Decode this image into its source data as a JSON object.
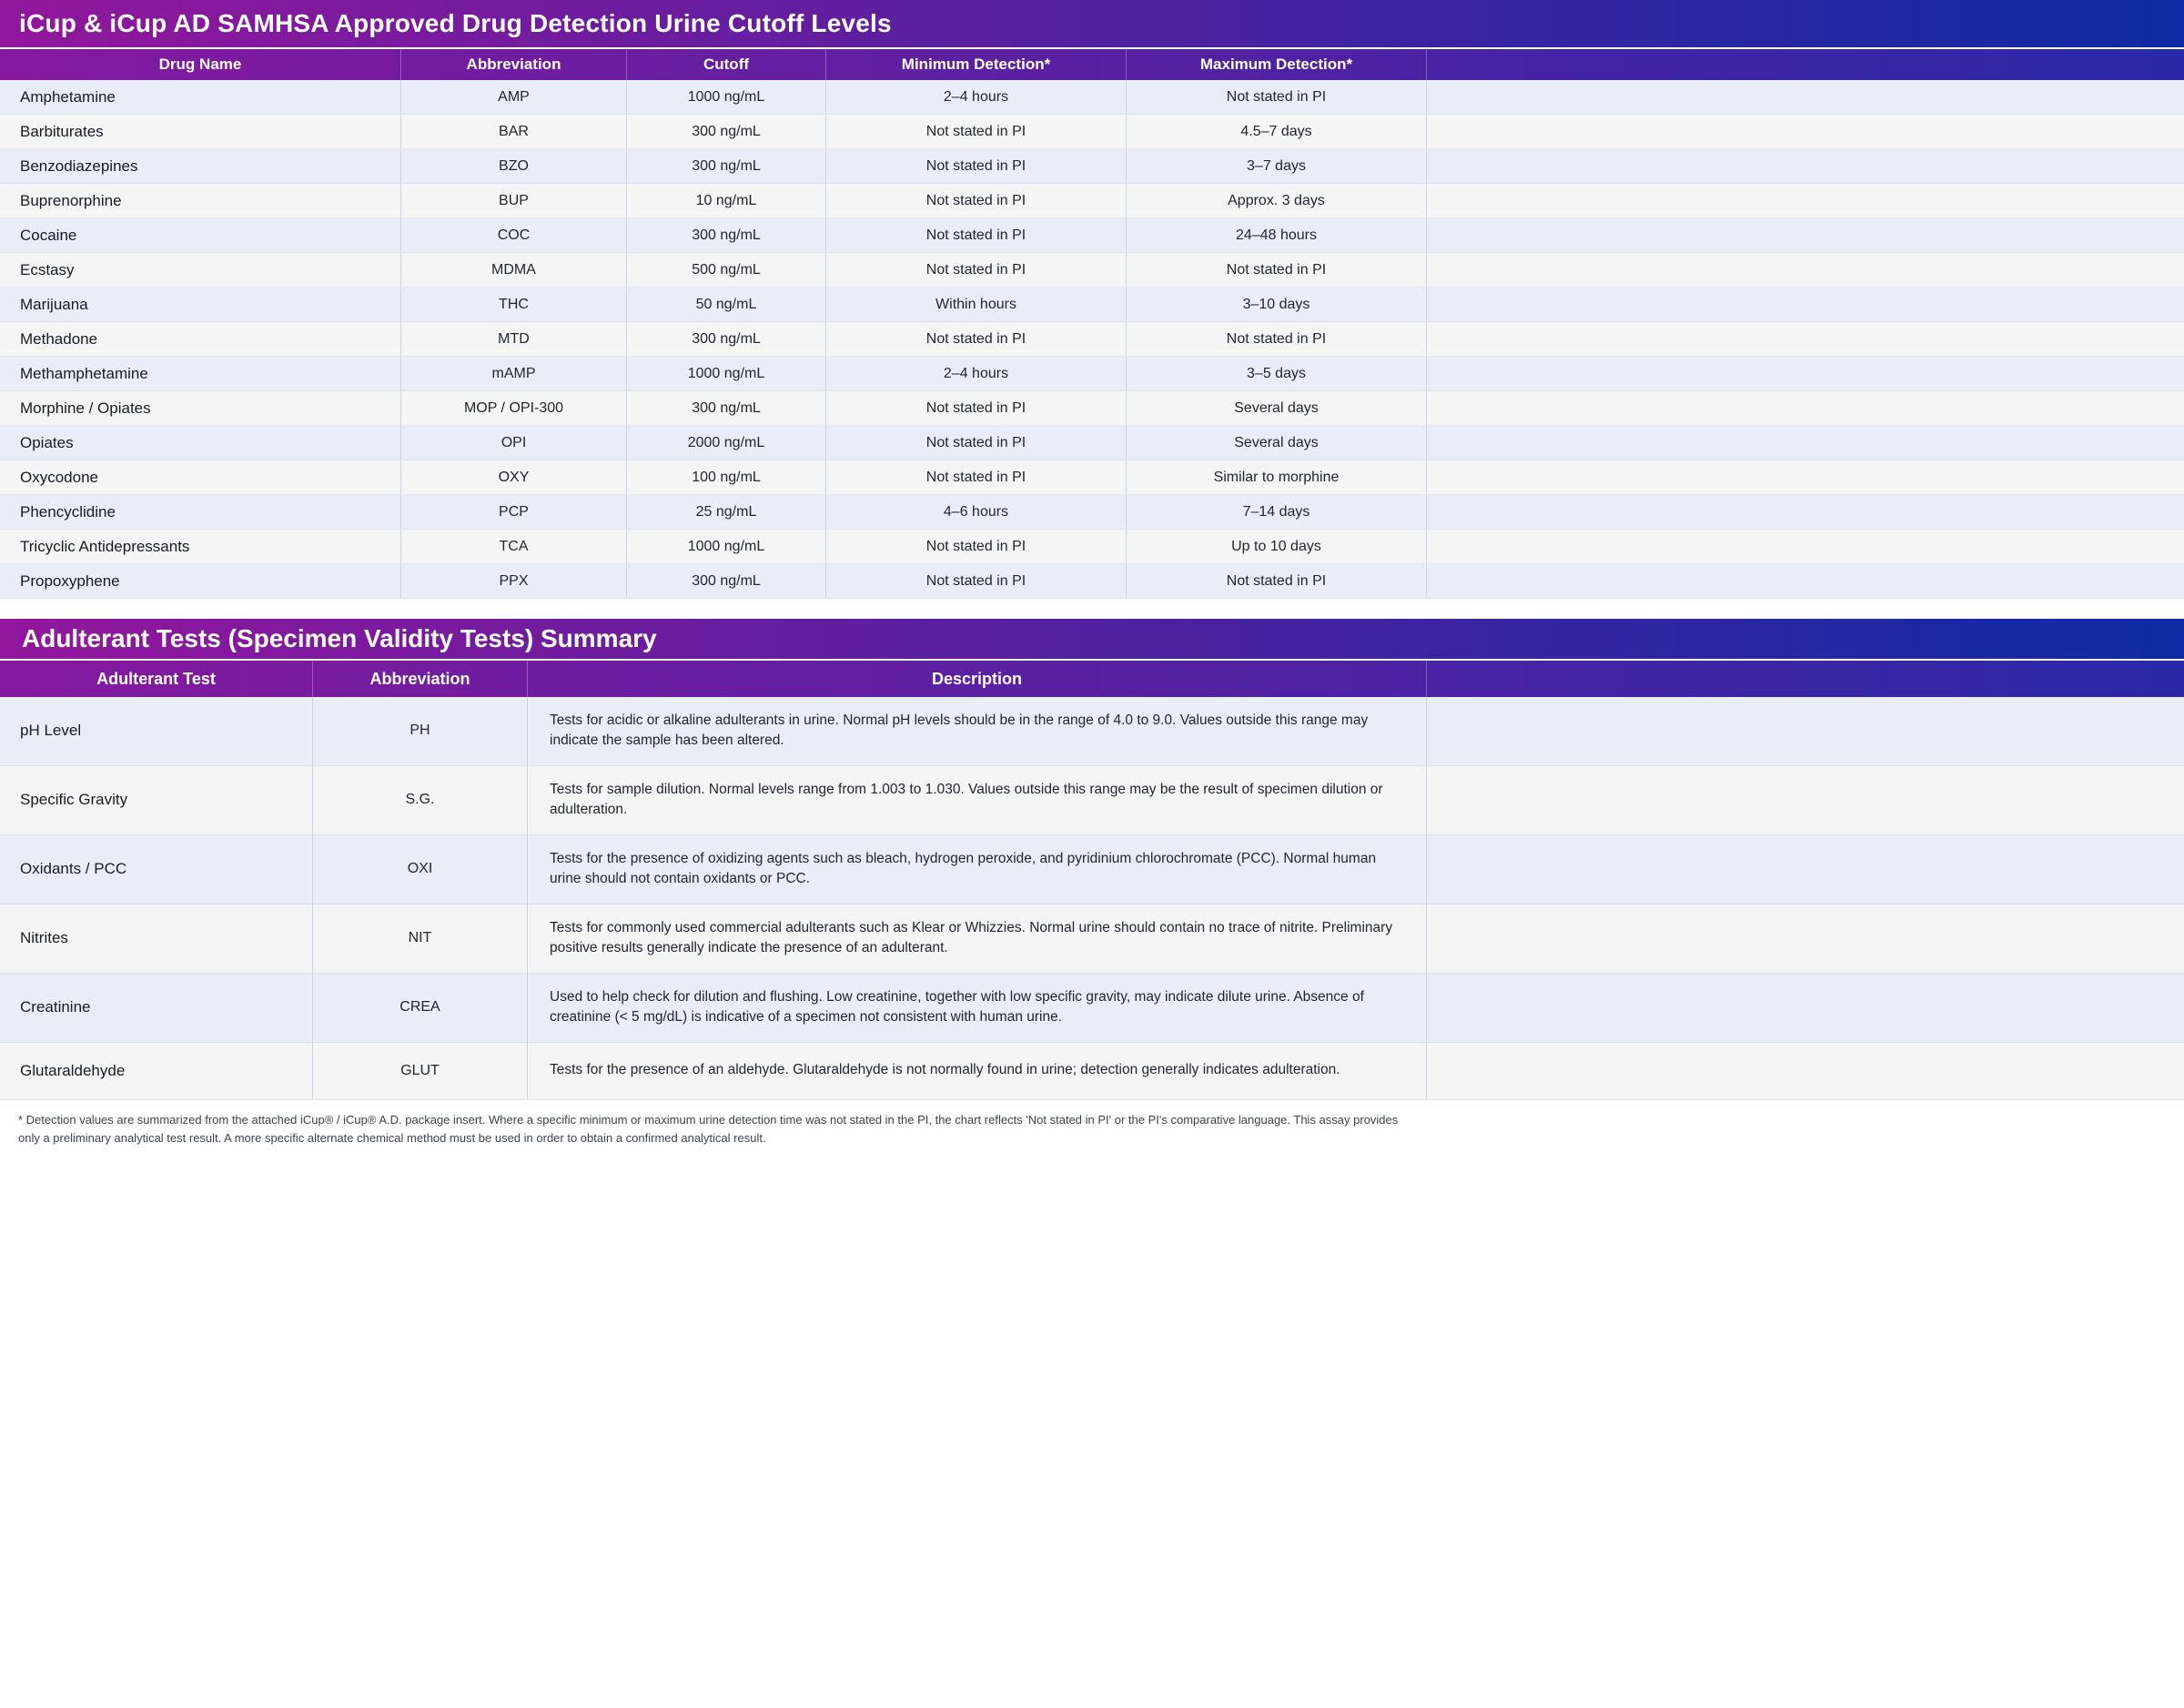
{
  "page": {
    "title": "iCup & iCup AD SAMHSA Approved Drug Detection Urine Cutoff Levels",
    "section2_title": "Adulterant Tests (Specimen Validity Tests) Summary",
    "footnote": "* Detection values are summarized from the attached iCup® / iCup® A.D. package insert. Where a specific minimum or maximum urine detection time was not stated in the PI, the chart reflects 'Not stated in PI' or the PI's comparative language. This assay provides only a preliminary analytical test result. A more specific alternate chemical method must be used in order to obtain a confirmed analytical result."
  },
  "colors": {
    "header_gradient_left": "#92179c",
    "header_gradient_right": "#0f2aa4",
    "table_header_gradient_left": "#85199e",
    "table_header_gradient_right": "#2a28a6",
    "stripe_blue": "#e8edf8",
    "stripe_gray": "#f5f5f6"
  },
  "drug_table": {
    "headers": [
      "Drug Name",
      "Abbreviation",
      "Cutoff",
      "Minimum Detection*",
      "Maximum Detection*"
    ],
    "rows": [
      {
        "drug": "Amphetamine",
        "abbr": "AMP",
        "cutoff": "1000 ng/mL",
        "min": "2–4 hours",
        "max": "Not stated in PI"
      },
      {
        "drug": "Barbiturates",
        "abbr": "BAR",
        "cutoff": "300 ng/mL",
        "min": "Not stated in PI",
        "max": "4.5–7 days"
      },
      {
        "drug": "Benzodiazepines",
        "abbr": "BZO",
        "cutoff": "300 ng/mL",
        "min": "Not stated in PI",
        "max": "3–7 days"
      },
      {
        "drug": "Buprenorphine",
        "abbr": "BUP",
        "cutoff": "10 ng/mL",
        "min": "Not stated in PI",
        "max": "Approx. 3 days"
      },
      {
        "drug": "Cocaine",
        "abbr": "COC",
        "cutoff": "300 ng/mL",
        "min": "Not stated in PI",
        "max": "24–48 hours"
      },
      {
        "drug": "Ecstasy",
        "abbr": "MDMA",
        "cutoff": "500 ng/mL",
        "min": "Not stated in PI",
        "max": "Not stated in PI"
      },
      {
        "drug": "Marijuana",
        "abbr": "THC",
        "cutoff": "50 ng/mL",
        "min": "Within hours",
        "max": "3–10 days"
      },
      {
        "drug": "Methadone",
        "abbr": "MTD",
        "cutoff": "300 ng/mL",
        "min": "Not stated in PI",
        "max": "Not stated in PI"
      },
      {
        "drug": "Methamphetamine",
        "abbr": "mAMP",
        "cutoff": "1000 ng/mL",
        "min": "2–4 hours",
        "max": "3–5 days"
      },
      {
        "drug": "Morphine / Opiates",
        "abbr": "MOP / OPI-300",
        "cutoff": "300 ng/mL",
        "min": "Not stated in PI",
        "max": "Several days"
      },
      {
        "drug": "Opiates",
        "abbr": "OPI",
        "cutoff": "2000 ng/mL",
        "min": "Not stated in PI",
        "max": "Several days"
      },
      {
        "drug": "Oxycodone",
        "abbr": "OXY",
        "cutoff": "100 ng/mL",
        "min": "Not stated in PI",
        "max": "Similar to morphine"
      },
      {
        "drug": "Phencyclidine",
        "abbr": "PCP",
        "cutoff": "25 ng/mL",
        "min": "4–6 hours",
        "max": "7–14 days"
      },
      {
        "drug": "Tricyclic Antidepressants",
        "abbr": "TCA",
        "cutoff": "1000 ng/mL",
        "min": "Not stated in PI",
        "max": "Up to 10 days"
      },
      {
        "drug": "Propoxyphene",
        "abbr": "PPX",
        "cutoff": "300 ng/mL",
        "min": "Not stated in PI",
        "max": "Not stated in PI"
      }
    ]
  },
  "adulterant_table": {
    "headers": [
      "Adulterant Test",
      "Abbreviation",
      "Description"
    ],
    "rows": [
      {
        "test": "pH Level",
        "abbr": "PH",
        "desc": "Tests for acidic or alkaline adulterants in urine. Normal pH levels should be in the range of 4.0 to 9.0. Values outside this range may indicate the sample has been altered."
      },
      {
        "test": "Specific Gravity",
        "abbr": "S.G.",
        "desc": "Tests for sample dilution. Normal levels range from 1.003 to 1.030. Values outside this range may be the result of specimen dilution or adulteration."
      },
      {
        "test": "Oxidants / PCC",
        "abbr": "OXI",
        "desc": "Tests for the presence of oxidizing agents such as bleach, hydrogen peroxide, and pyridinium chlorochromate (PCC). Normal human urine should not contain oxidants or PCC."
      },
      {
        "test": "Nitrites",
        "abbr": "NIT",
        "desc": "Tests for commonly used commercial adulterants such as Klear or Whizzies. Normal urine should contain no trace of nitrite. Preliminary positive results generally indicate the presence of an adulterant."
      },
      {
        "test": "Creatinine",
        "abbr": "CREA",
        "desc": "Used to help check for dilution and flushing. Low creatinine, together with low specific gravity, may indicate dilute urine. Absence of creatinine (< 5 mg/dL) is indicative of a specimen not consistent with human urine."
      },
      {
        "test": "Glutaraldehyde",
        "abbr": "GLUT",
        "desc": "Tests for the presence of an aldehyde. Glutaraldehyde is not normally found in urine; detection generally indicates adulteration."
      }
    ]
  }
}
